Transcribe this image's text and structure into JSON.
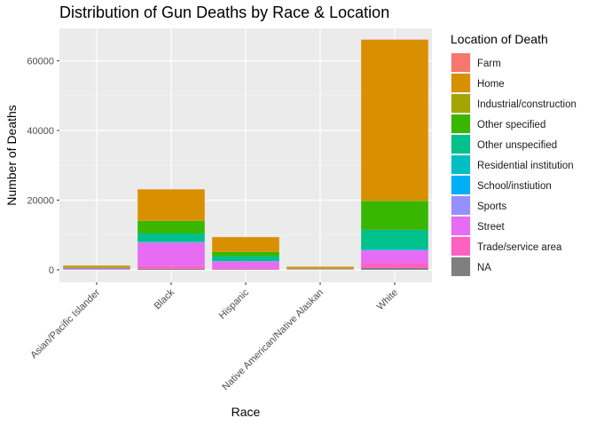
{
  "chart_data": {
    "type": "bar",
    "stacked": true,
    "title": "Distribution of Gun Deaths by Race & Location",
    "xlabel": "Race",
    "ylabel": "Number of Deaths",
    "ylim": [
      0,
      66000
    ],
    "yticks": [
      0,
      20000,
      40000,
      60000
    ],
    "ytick_labels": [
      "0",
      "20000",
      "40000",
      "60000"
    ],
    "grid": true,
    "legend_position": "right",
    "legend_title": "Location of Death",
    "categories": [
      "Asian/Pacific Islander",
      "Black",
      "Hispanic",
      "Native American/Native Alaskan",
      "White"
    ],
    "series": [
      {
        "name": "NA",
        "color": "#7F7F7F",
        "values": [
          20,
          300,
          100,
          30,
          500
        ]
      },
      {
        "name": "Trade/service area",
        "color": "#FF61C3",
        "values": [
          100,
          800,
          300,
          30,
          1500
        ]
      },
      {
        "name": "Street",
        "color": "#E76BF3",
        "values": [
          250,
          6700,
          2000,
          100,
          3500
        ]
      },
      {
        "name": "Sports",
        "color": "#9590FF",
        "values": [
          10,
          50,
          30,
          5,
          100
        ]
      },
      {
        "name": "School/instiution",
        "color": "#00B0F6",
        "values": [
          10,
          100,
          50,
          5,
          200
        ]
      },
      {
        "name": "Residential institution",
        "color": "#00BFC4",
        "values": [
          10,
          100,
          50,
          5,
          200
        ]
      },
      {
        "name": "Other unspecified",
        "color": "#00C08B",
        "values": [
          150,
          2400,
          1400,
          60,
          5500
        ]
      },
      {
        "name": "Other specified",
        "color": "#39B600",
        "values": [
          150,
          3600,
          1200,
          80,
          8200
        ]
      },
      {
        "name": "Industrial/construction",
        "color": "#A3A500",
        "values": [
          10,
          50,
          50,
          10,
          300
        ]
      },
      {
        "name": "Home",
        "color": "#D89000",
        "values": [
          500,
          9000,
          4200,
          550,
          46000
        ]
      },
      {
        "name": "Farm",
        "color": "#F8766D",
        "values": [
          0,
          10,
          20,
          10,
          100
        ]
      }
    ],
    "legend_order": [
      "Farm",
      "Home",
      "Industrial/construction",
      "Other specified",
      "Other unspecified",
      "Residential institution",
      "School/instiution",
      "Sports",
      "Street",
      "Trade/service area",
      "NA"
    ]
  }
}
